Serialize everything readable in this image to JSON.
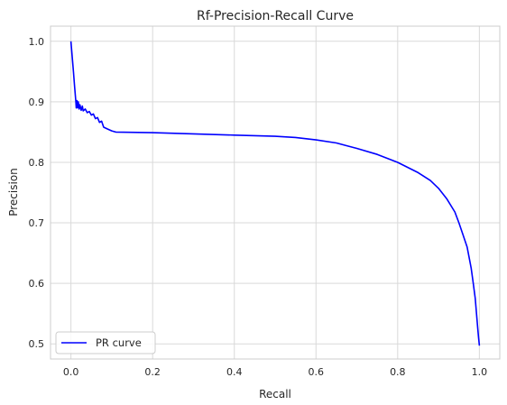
{
  "chart_data": {
    "type": "line",
    "title": "Rf-Precision-Recall Curve",
    "xlabel": "Recall",
    "ylabel": "Precision",
    "xlim": [
      -0.05,
      1.05
    ],
    "ylim": [
      0.475,
      1.025
    ],
    "xticks": [
      0.0,
      0.2,
      0.4,
      0.6,
      0.8,
      1.0
    ],
    "xtick_labels": [
      "0.0",
      "0.2",
      "0.4",
      "0.6",
      "0.8",
      "1.0"
    ],
    "yticks": [
      0.5,
      0.6,
      0.7,
      0.8,
      0.9,
      1.0
    ],
    "ytick_labels": [
      "0.5",
      "0.6",
      "0.7",
      "0.8",
      "0.9",
      "1.0"
    ],
    "grid": true,
    "legend_position": "lower-left",
    "series": [
      {
        "name": "PR curve",
        "color": "#0000ff",
        "x": [
          0.0,
          0.003,
          0.006,
          0.009,
          0.012,
          0.013,
          0.015,
          0.016,
          0.018,
          0.02,
          0.022,
          0.025,
          0.028,
          0.03,
          0.035,
          0.04,
          0.045,
          0.05,
          0.055,
          0.06,
          0.065,
          0.07,
          0.075,
          0.08,
          0.09,
          0.1,
          0.11,
          0.2,
          0.3,
          0.4,
          0.5,
          0.55,
          0.6,
          0.65,
          0.7,
          0.75,
          0.8,
          0.85,
          0.88,
          0.9,
          0.92,
          0.94,
          0.95,
          0.96,
          0.97,
          0.975,
          0.98,
          0.985,
          0.99,
          0.993,
          0.996,
          0.998,
          1.0
        ],
        "y": [
          1.0,
          0.975,
          0.95,
          0.925,
          0.9,
          0.89,
          0.902,
          0.89,
          0.9,
          0.888,
          0.895,
          0.886,
          0.893,
          0.885,
          0.888,
          0.882,
          0.884,
          0.878,
          0.88,
          0.872,
          0.874,
          0.866,
          0.868,
          0.858,
          0.855,
          0.852,
          0.85,
          0.849,
          0.847,
          0.845,
          0.843,
          0.841,
          0.837,
          0.832,
          0.823,
          0.813,
          0.8,
          0.783,
          0.77,
          0.757,
          0.74,
          0.718,
          0.7,
          0.68,
          0.66,
          0.643,
          0.625,
          0.6,
          0.575,
          0.55,
          0.525,
          0.51,
          0.497
        ]
      }
    ]
  }
}
